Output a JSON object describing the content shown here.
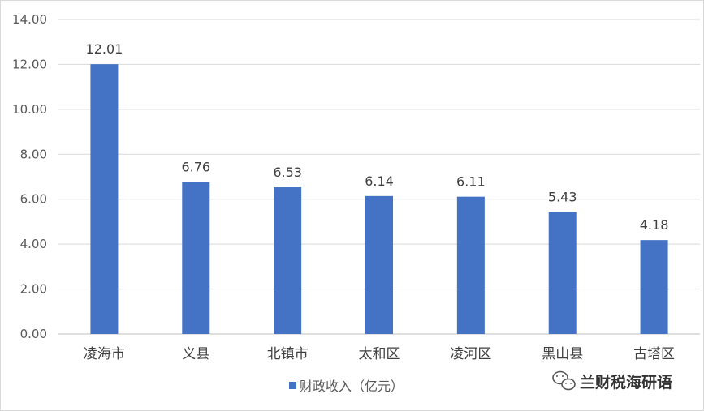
{
  "chart_data": {
    "type": "bar",
    "categories": [
      "凌海市",
      "义县",
      "北镇市",
      "太和区",
      "凌河区",
      "黑山县",
      "古塔区"
    ],
    "series": [
      {
        "name": "财政收入（亿元）",
        "values": [
          12.01,
          6.76,
          6.53,
          6.14,
          6.11,
          5.43,
          4.18
        ]
      }
    ],
    "data_labels": [
      "12.01",
      "6.76",
      "6.53",
      "6.14",
      "6.11",
      "5.43",
      "4.18"
    ],
    "y_ticks": [
      "0.00",
      "2.00",
      "4.00",
      "6.00",
      "8.00",
      "10.00",
      "12.00",
      "14.00"
    ],
    "ylim": [
      0,
      14
    ],
    "grid": true,
    "legend_position": "bottom",
    "bar_color": "#4472c4",
    "grid_color": "#d9d9d9",
    "title": "",
    "xlabel": "",
    "ylabel": ""
  },
  "watermark": {
    "text": "兰财税海研语",
    "icon": "wechat-icon"
  }
}
